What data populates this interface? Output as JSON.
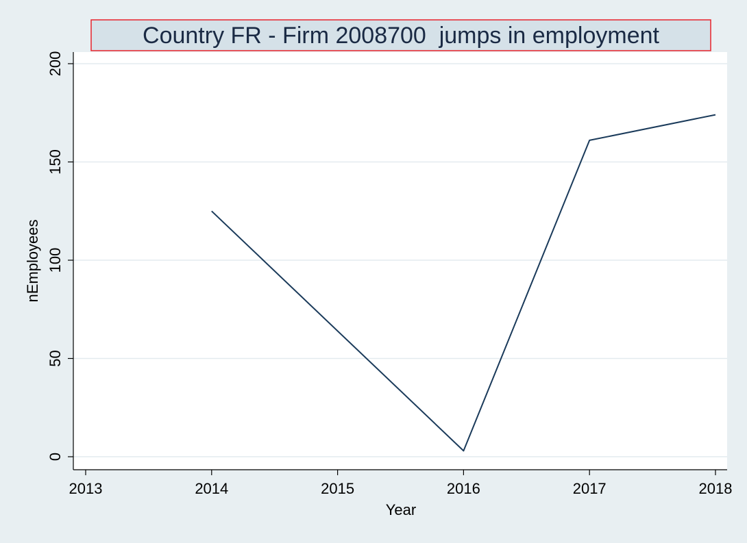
{
  "chart_data": {
    "type": "line",
    "title": "Country FR - Firm 2008700  jumps in employment",
    "xlabel": "Year",
    "ylabel": "nEmployees",
    "x": [
      2014,
      2016,
      2017,
      2018
    ],
    "series": [
      {
        "values": [
          125,
          3,
          161,
          174
        ]
      }
    ],
    "xticks": [
      "2013",
      "2014",
      "2015",
      "2016",
      "2017",
      "2018"
    ],
    "yticks": [
      "0",
      "50",
      "100",
      "150",
      "200"
    ],
    "xlim": [
      2013,
      2018
    ],
    "ylim": [
      0,
      200
    ],
    "grid": true,
    "colors": {
      "background": "#e8eff2",
      "plot_area": "#ffffff",
      "line": "#1a3a5a",
      "grid": "#e3ebef",
      "title_fill": "#d5e1e8",
      "title_border": "#e8222a"
    }
  }
}
